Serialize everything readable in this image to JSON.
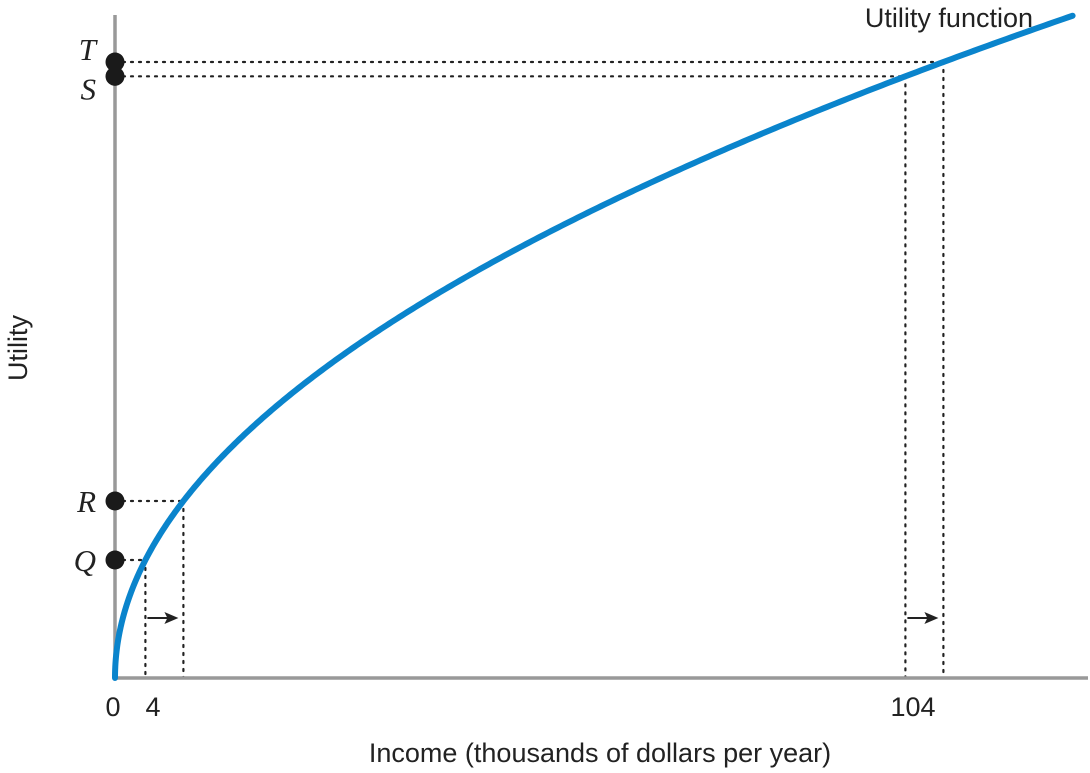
{
  "chart_data": {
    "type": "line",
    "title": "",
    "xlabel": "Income (thousands of dollars per year)",
    "ylabel": "Utility",
    "x_ticks": [
      "0",
      "4",
      "104"
    ],
    "series": [
      {
        "name": "Utility function",
        "function": "sqrt",
        "x_start": 0,
        "x_end": 126,
        "color": "#0a84cc"
      }
    ],
    "utility_points": [
      {
        "label": "Q",
        "x": 4
      },
      {
        "label": "R",
        "x": 9
      },
      {
        "label": "S",
        "x": 104
      },
      {
        "label": "T",
        "x": 109
      }
    ],
    "income_increase_arrows": [
      {
        "from": 4,
        "to": 9
      },
      {
        "from": 104,
        "to": 109
      }
    ],
    "axis_color": "#999999",
    "point_color": "#1a1a1a",
    "grid": false,
    "legend": "none"
  }
}
